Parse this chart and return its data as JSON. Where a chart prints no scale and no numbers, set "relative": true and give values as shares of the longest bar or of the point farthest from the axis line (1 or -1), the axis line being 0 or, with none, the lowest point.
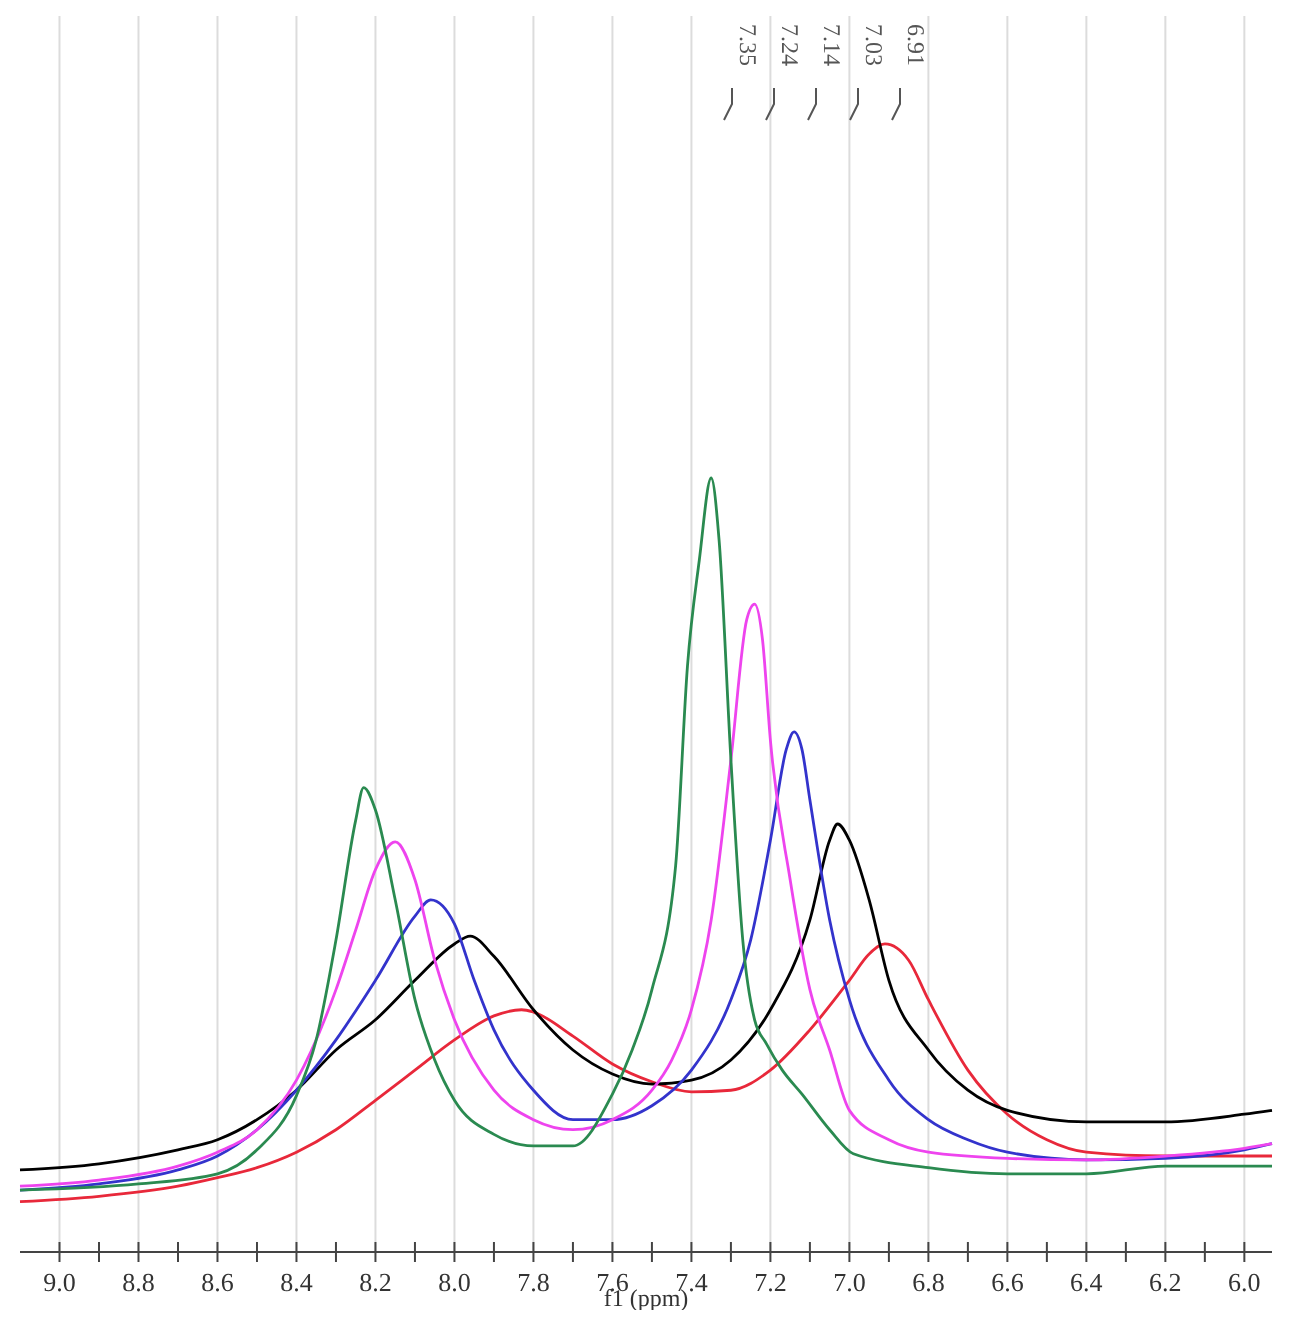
{
  "chart_data": {
    "type": "line",
    "relative": true,
    "xlabel": "f1 (ppm)",
    "xlim": [
      9.1,
      5.93
    ],
    "xticks": [
      {
        "value": 9.0,
        "label": "9.0"
      },
      {
        "value": 8.9,
        "label": null
      },
      {
        "value": 8.8,
        "label": "8.8"
      },
      {
        "value": 8.7,
        "label": null
      },
      {
        "value": 8.6,
        "label": "8.6"
      },
      {
        "value": 8.5,
        "label": null
      },
      {
        "value": 8.4,
        "label": "8.4"
      },
      {
        "value": 8.3,
        "label": null
      },
      {
        "value": 8.2,
        "label": "8.2"
      },
      {
        "value": 8.1,
        "label": null
      },
      {
        "value": 8.0,
        "label": "8.0"
      },
      {
        "value": 7.9,
        "label": null
      },
      {
        "value": 7.8,
        "label": "7.8"
      },
      {
        "value": 7.7,
        "label": null
      },
      {
        "value": 7.6,
        "label": "7.6"
      },
      {
        "value": 7.5,
        "label": null
      },
      {
        "value": 7.4,
        "label": "7.4"
      },
      {
        "value": 7.3,
        "label": null
      },
      {
        "value": 7.2,
        "label": "7.2"
      },
      {
        "value": 7.1,
        "label": null
      },
      {
        "value": 7.0,
        "label": "7.0"
      },
      {
        "value": 6.9,
        "label": null
      },
      {
        "value": 6.8,
        "label": "6.8"
      },
      {
        "value": 6.7,
        "label": null
      },
      {
        "value": 6.6,
        "label": "6.6"
      },
      {
        "value": 6.5,
        "label": null
      },
      {
        "value": 6.4,
        "label": "6.4"
      },
      {
        "value": 6.3,
        "label": null
      },
      {
        "value": 6.2,
        "label": "6.2"
      },
      {
        "value": 6.1,
        "label": null
      },
      {
        "value": 6.0,
        "label": "6.0"
      }
    ],
    "grid": "x",
    "marker": "none",
    "line_style": "solid",
    "annotations": [
      "7.35",
      "7.24",
      "7.14",
      "7.03",
      "6.91"
    ],
    "series": [
      {
        "color": "#e8283a",
        "x": [
          9.1,
          8.9,
          8.7,
          8.6,
          8.5,
          8.4,
          8.3,
          8.2,
          8.1,
          8.0,
          7.9,
          7.83,
          7.8,
          7.7,
          7.6,
          7.5,
          7.4,
          7.3,
          7.2,
          7.1,
          7.0,
          6.95,
          6.91,
          6.85,
          6.8,
          6.7,
          6.6,
          6.5,
          6.4,
          6.2,
          6.0,
          5.93
        ],
        "values": [
          0.065,
          0.072,
          0.085,
          0.096,
          0.109,
          0.129,
          0.158,
          0.196,
          0.235,
          0.274,
          0.305,
          0.313,
          0.31,
          0.279,
          0.243,
          0.22,
          0.207,
          0.209,
          0.235,
          0.287,
          0.351,
          0.385,
          0.398,
          0.377,
          0.326,
          0.235,
          0.178,
          0.145,
          0.129,
          0.124,
          0.124,
          0.124
        ]
      },
      {
        "color": "#000000",
        "x": [
          9.1,
          8.9,
          8.7,
          8.6,
          8.5,
          8.4,
          8.3,
          8.2,
          8.1,
          8.0,
          7.96,
          7.9,
          7.8,
          7.7,
          7.6,
          7.5,
          7.4,
          7.3,
          7.2,
          7.1,
          7.05,
          7.03,
          7.0,
          6.95,
          6.9,
          6.8,
          6.7,
          6.6,
          6.4,
          6.2,
          6.0,
          5.93
        ],
        "values": [
          0.106,
          0.114,
          0.132,
          0.145,
          0.171,
          0.209,
          0.261,
          0.3,
          0.351,
          0.398,
          0.408,
          0.382,
          0.313,
          0.261,
          0.23,
          0.217,
          0.222,
          0.248,
          0.313,
          0.429,
          0.532,
          0.553,
          0.532,
          0.455,
          0.351,
          0.261,
          0.209,
          0.183,
          0.168,
          0.168,
          0.178,
          0.183
        ]
      },
      {
        "color": "#3333cc",
        "x": [
          9.1,
          8.9,
          8.7,
          8.6,
          8.5,
          8.4,
          8.3,
          8.2,
          8.1,
          8.06,
          8.0,
          7.95,
          7.9,
          7.8,
          7.7,
          7.6,
          7.5,
          7.4,
          7.3,
          7.25,
          7.2,
          7.16,
          7.14,
          7.12,
          7.1,
          7.05,
          7.0,
          6.9,
          6.8,
          6.7,
          6.6,
          6.4,
          6.2,
          6.0,
          5.93
        ],
        "values": [
          0.08,
          0.088,
          0.106,
          0.124,
          0.158,
          0.209,
          0.274,
          0.351,
          0.434,
          0.455,
          0.424,
          0.351,
          0.287,
          0.209,
          0.171,
          0.171,
          0.189,
          0.235,
          0.326,
          0.403,
          0.532,
          0.649,
          0.672,
          0.649,
          0.584,
          0.429,
          0.326,
          0.222,
          0.171,
          0.145,
          0.129,
          0.119,
          0.121,
          0.132,
          0.14
        ]
      },
      {
        "color": "#ee44ee",
        "x": [
          9.1,
          8.9,
          8.7,
          8.6,
          8.5,
          8.4,
          8.3,
          8.25,
          8.2,
          8.15,
          8.1,
          8.05,
          8.0,
          7.9,
          7.8,
          7.7,
          7.6,
          7.5,
          7.45,
          7.4,
          7.35,
          7.3,
          7.26,
          7.24,
          7.22,
          7.2,
          7.15,
          7.1,
          7.05,
          7.0,
          6.9,
          6.8,
          6.6,
          6.4,
          6.2,
          6.0,
          5.93
        ],
        "values": [
          0.085,
          0.093,
          0.111,
          0.129,
          0.158,
          0.222,
          0.339,
          0.416,
          0.494,
          0.53,
          0.481,
          0.377,
          0.3,
          0.209,
          0.171,
          0.158,
          0.171,
          0.209,
          0.248,
          0.313,
          0.429,
          0.636,
          0.817,
          0.837,
          0.791,
          0.661,
          0.481,
          0.339,
          0.261,
          0.183,
          0.145,
          0.129,
          0.121,
          0.119,
          0.124,
          0.134,
          0.14
        ]
      },
      {
        "color": "#2a8a50",
        "x": [
          9.1,
          8.8,
          8.6,
          8.5,
          8.4,
          8.35,
          8.3,
          8.25,
          8.23,
          8.2,
          8.15,
          8.1,
          8.05,
          8.0,
          7.9,
          7.8,
          7.7,
          7.6,
          7.55,
          7.5,
          7.44,
          7.41,
          7.38,
          7.35,
          7.33,
          7.3,
          7.27,
          7.24,
          7.21,
          7.17,
          7.12,
          7.05,
          6.99,
          6.8,
          6.6,
          6.4,
          6.2,
          6.0,
          5.93
        ],
        "values": [
          0.08,
          0.088,
          0.101,
          0.132,
          0.202,
          0.274,
          0.403,
          0.558,
          0.6,
          0.571,
          0.455,
          0.326,
          0.248,
          0.196,
          0.152,
          0.137,
          0.137,
          0.204,
          0.261,
          0.339,
          0.499,
          0.757,
          0.894,
          1,
          0.92,
          0.636,
          0.403,
          0.3,
          0.269,
          0.235,
          0.204,
          0.158,
          0.127,
          0.109,
          0.101,
          0.101,
          0.111,
          0.111,
          0.111
        ]
      }
    ]
  }
}
